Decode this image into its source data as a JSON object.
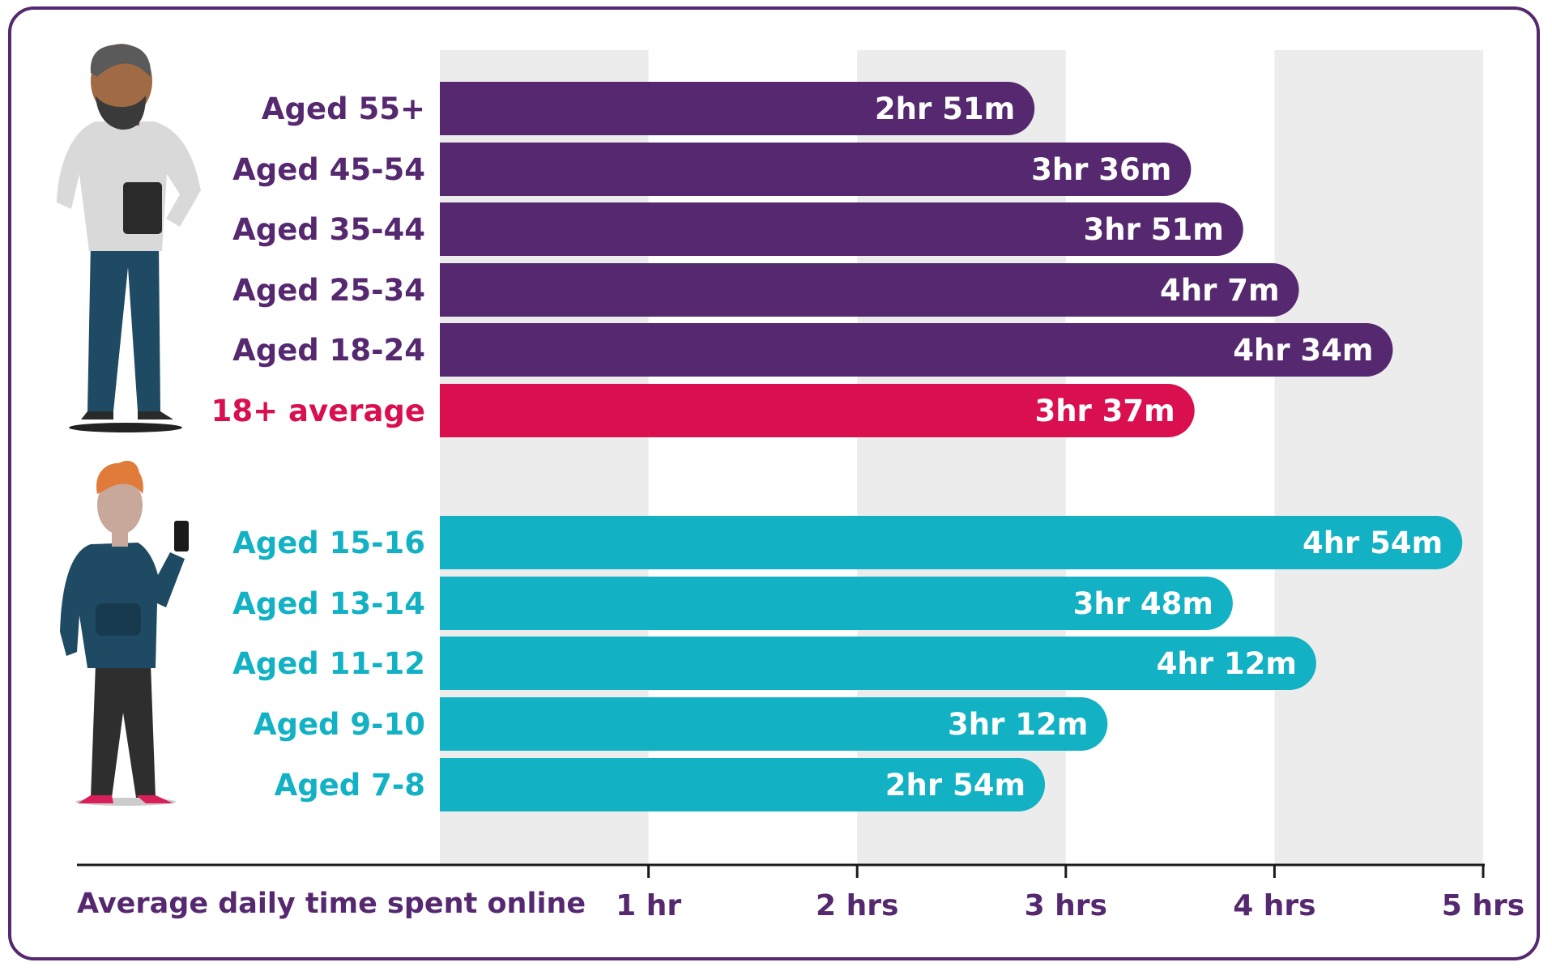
{
  "chart_data": {
    "type": "bar",
    "orientation": "horizontal",
    "xlabel": "Average daily time spent online",
    "xlim": [
      0,
      5
    ],
    "x_unit": "hours",
    "x_ticks": [
      {
        "value": 1,
        "label": "1 hr"
      },
      {
        "value": 2,
        "label": "2 hrs"
      },
      {
        "value": 3,
        "label": "3 hrs"
      },
      {
        "value": 4,
        "label": "4 hrs"
      },
      {
        "value": 5,
        "label": "5 hrs"
      }
    ],
    "grid": "alternating vertical bands",
    "colors": {
      "adult": "#55286f",
      "average": "#d90f50",
      "child": "#12b1c4",
      "axis": "#1a1a1a",
      "band": "#ececec",
      "frame": "#55286f"
    },
    "groups": [
      {
        "group": "adult",
        "bars": [
          {
            "category": "Aged 55+",
            "value": 2.85,
            "label": "2hr 51m",
            "color": "#55286f"
          },
          {
            "category": "Aged 45-54",
            "value": 3.6,
            "label": "3hr 36m",
            "color": "#55286f"
          },
          {
            "category": "Aged 35-44",
            "value": 3.85,
            "label": "3hr 51m",
            "color": "#55286f"
          },
          {
            "category": "Aged 25-34",
            "value": 4.117,
            "label": "4hr 7m",
            "color": "#55286f"
          },
          {
            "category": "Aged 18-24",
            "value": 4.567,
            "label": "4hr 34m",
            "color": "#55286f"
          },
          {
            "category": "18+ average",
            "value": 3.617,
            "label": "3hr 37m",
            "color": "#d90f50"
          }
        ]
      },
      {
        "group": "child",
        "bars": [
          {
            "category": "Aged 15-16",
            "value": 4.9,
            "label": "4hr 54m",
            "color": "#12b1c4"
          },
          {
            "category": "Aged 13-14",
            "value": 3.8,
            "label": "3hr 48m",
            "color": "#12b1c4"
          },
          {
            "category": "Aged 11-12",
            "value": 4.2,
            "label": "4hr 12m",
            "color": "#12b1c4"
          },
          {
            "category": "Aged 9-10",
            "value": 3.2,
            "label": "3hr 12m",
            "color": "#12b1c4"
          },
          {
            "category": "Aged 7-8",
            "value": 2.9,
            "label": "2hr 54m",
            "color": "#12b1c4"
          }
        ]
      }
    ]
  },
  "illustrations": {
    "adult_icon": "adult-man-with-tablet-icon",
    "child_icon": "teen-boy-with-phone-icon"
  }
}
